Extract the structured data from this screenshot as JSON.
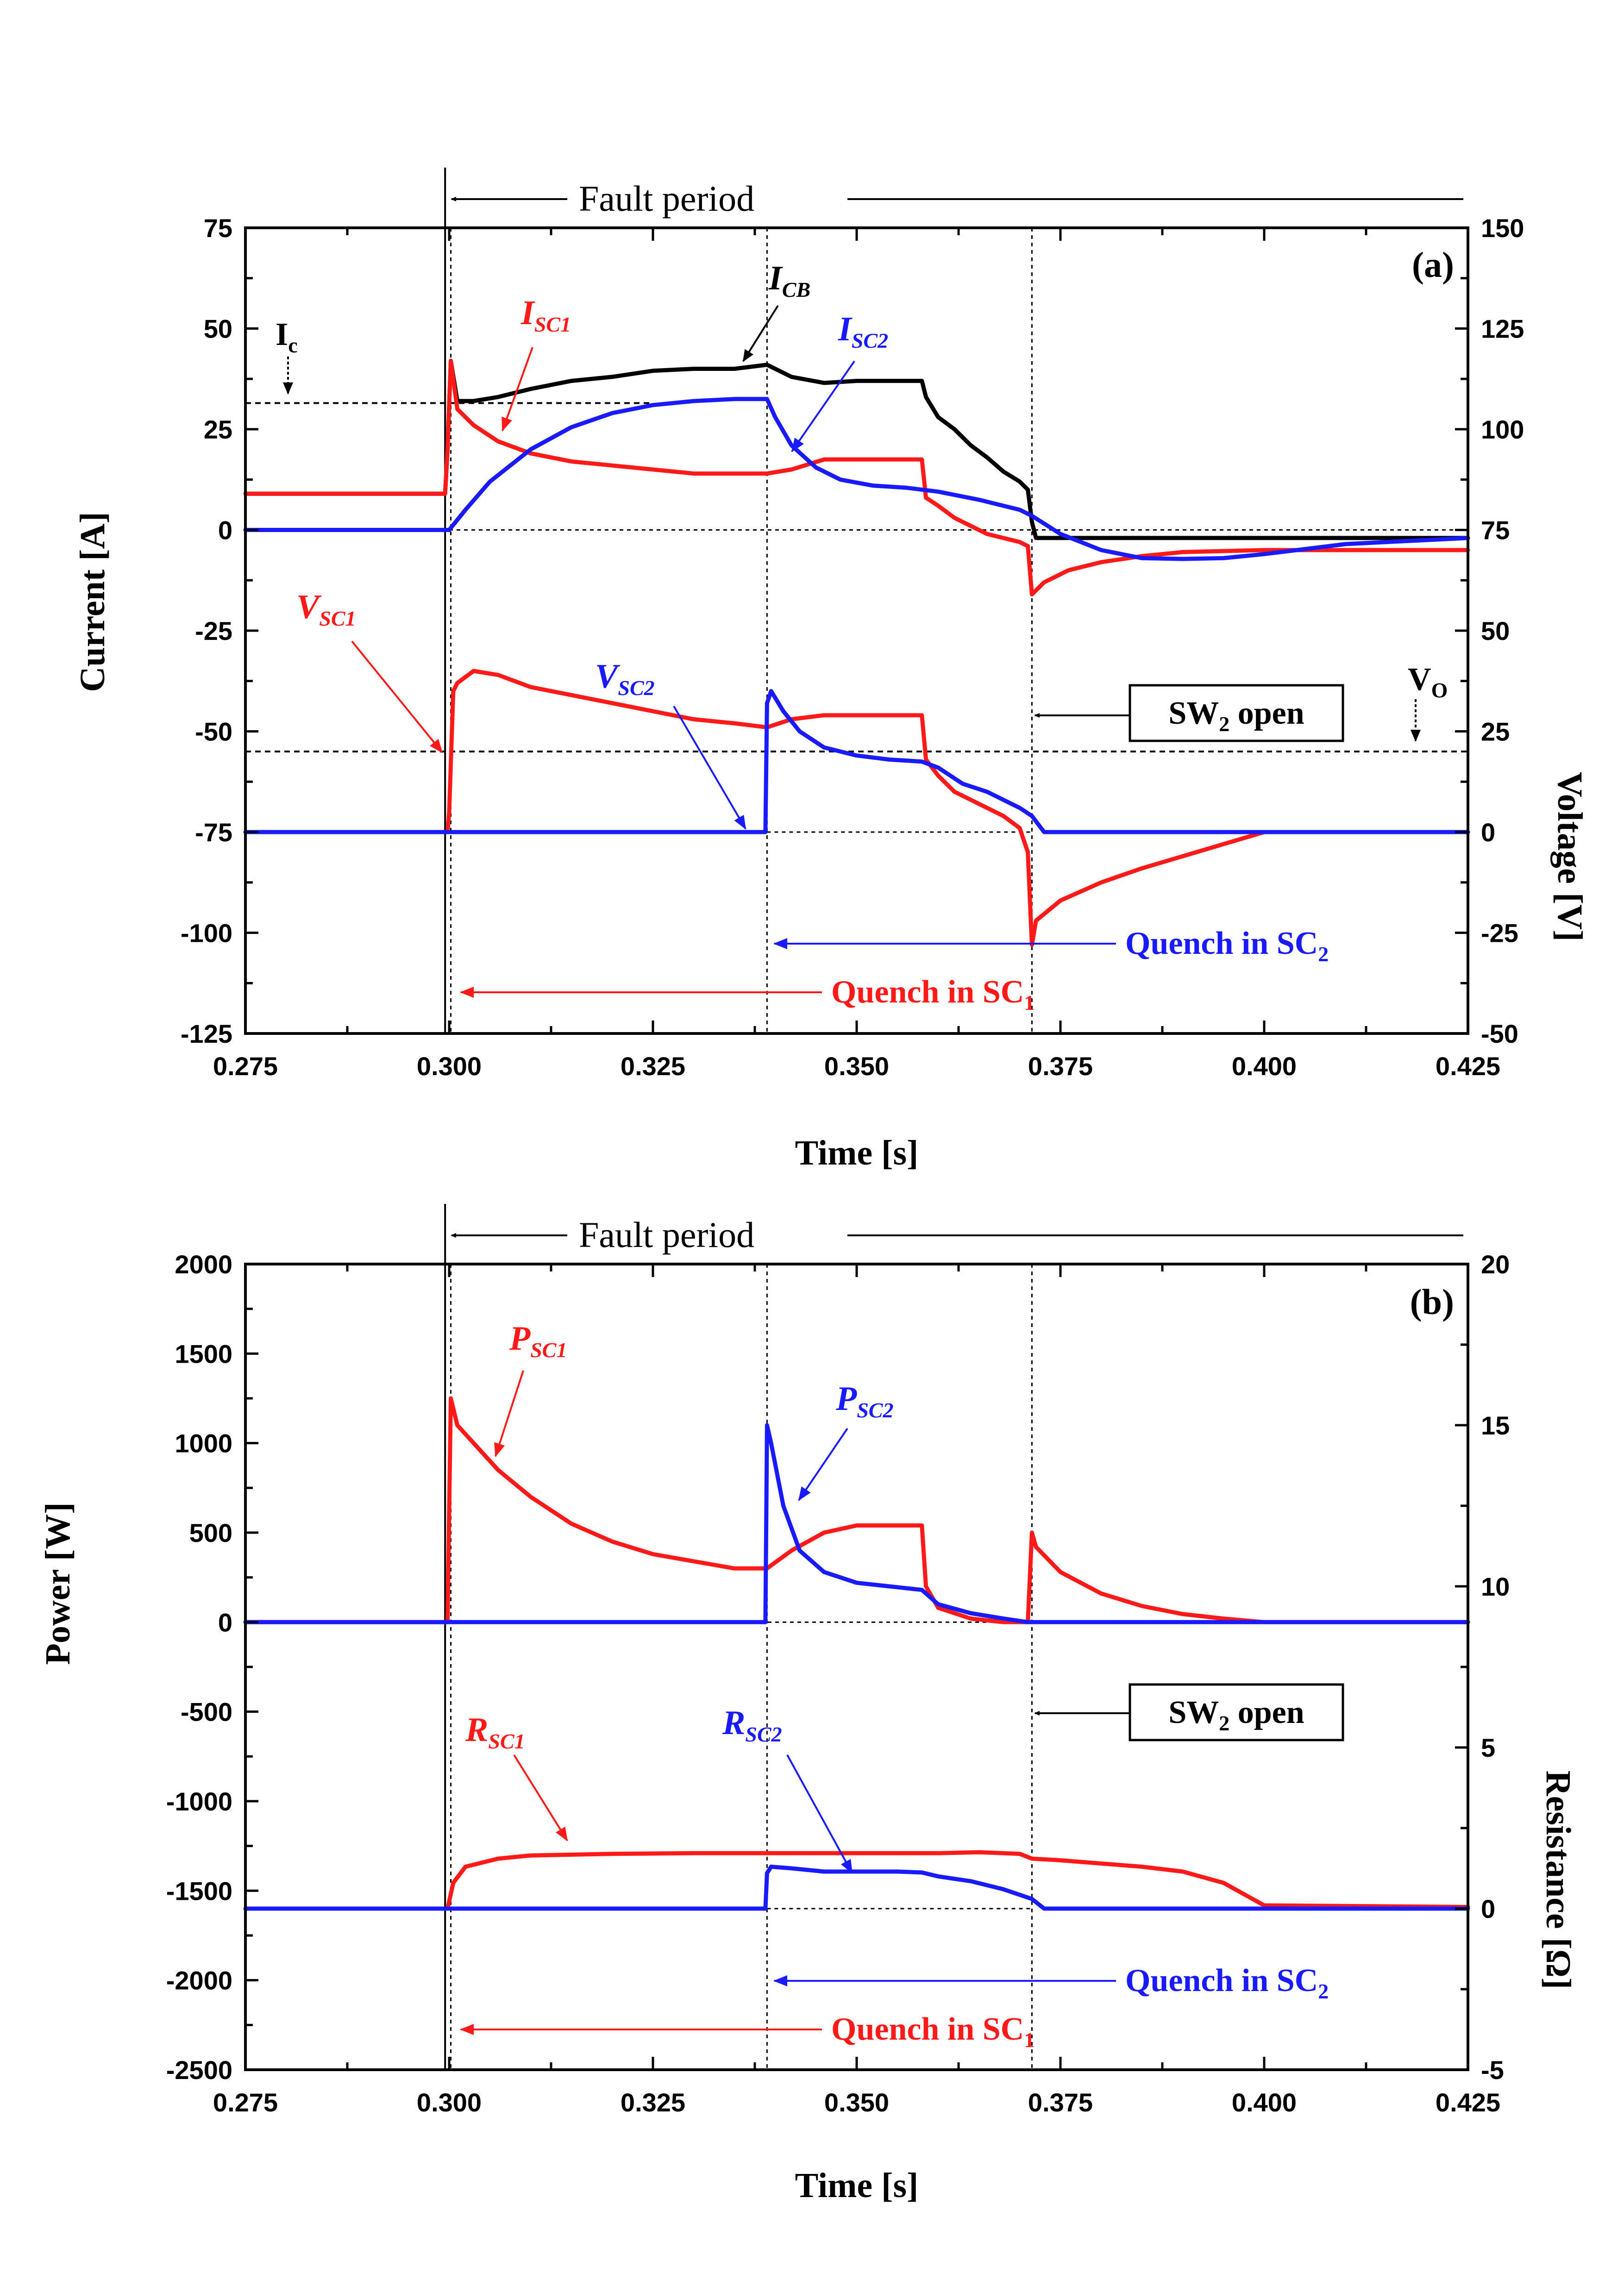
{
  "colors": {
    "red": "#ff1a1a",
    "blue": "#1a1aff",
    "black": "#000000"
  },
  "chart_data": [
    {
      "type": "line",
      "panel_label": "(a)",
      "xlabel": "Time [s]",
      "ylabel": "Current [A]",
      "ylabel_right": "Voltage [V]",
      "xlim": [
        0.275,
        0.425
      ],
      "ylim": [
        -125,
        75
      ],
      "ylim_right": [
        -50,
        150
      ],
      "x_ticks": [
        "0.275",
        "0.300",
        "0.325",
        "0.350",
        "0.375",
        "0.400",
        "0.425"
      ],
      "y_ticks": [
        "75",
        "50",
        "25",
        "0",
        "-25",
        "-50",
        "-75",
        "-100",
        "-125"
      ],
      "y_ticks_right": [
        "150",
        "125",
        "100",
        "75",
        "50",
        "25",
        "0",
        "-25",
        "-50"
      ],
      "annotations": {
        "fault_period": "Fault period",
        "ic_label": "I",
        "ic_sub": "c",
        "vo_label": "V",
        "vo_sub": "O",
        "sw2_open": "SW",
        "sw2_sub": "2",
        "sw2_rest": " open",
        "quench_sc2": "Quench in SC",
        "quench_sc2_sub": "2",
        "quench_sc1": "Quench in SC",
        "quench_sc1_sub": "1"
      },
      "reference_levels": {
        "Ic_A": 31.5,
        "Vo_V": 20
      },
      "event_times": {
        "fault_start": 0.2995,
        "quench_sc1": 0.3002,
        "quench_sc2": 0.339,
        "sw2_open": 0.3715
      },
      "series": [
        {
          "name": "I",
          "sub": "CB",
          "color": "black",
          "axis": "left",
          "x": [
            0.275,
            0.2995,
            0.2998,
            0.3002,
            0.301,
            0.303,
            0.306,
            0.31,
            0.315,
            0.32,
            0.325,
            0.33,
            0.335,
            0.339,
            0.342,
            0.346,
            0.35,
            0.355,
            0.358,
            0.3585,
            0.36,
            0.362,
            0.364,
            0.366,
            0.368,
            0.37,
            0.371,
            0.3715,
            0.372,
            0.38,
            0.39,
            0.4,
            0.41,
            0.425
          ],
          "y": [
            9,
            9,
            20,
            42,
            32,
            32,
            33,
            35,
            37,
            38,
            39.5,
            40,
            40,
            41,
            38,
            36.5,
            37,
            37,
            37,
            33,
            28,
            25,
            21,
            18,
            14.5,
            12,
            10,
            2,
            -2,
            -2,
            -2,
            -2,
            -2,
            -2
          ]
        },
        {
          "name": "I",
          "sub": "SC1",
          "color": "red",
          "axis": "left",
          "x": [
            0.275,
            0.2995,
            0.2998,
            0.3002,
            0.301,
            0.303,
            0.306,
            0.31,
            0.315,
            0.32,
            0.325,
            0.33,
            0.335,
            0.339,
            0.342,
            0.346,
            0.35,
            0.355,
            0.358,
            0.3585,
            0.36,
            0.362,
            0.364,
            0.366,
            0.368,
            0.37,
            0.371,
            0.3715,
            0.373,
            0.376,
            0.38,
            0.385,
            0.39,
            0.4,
            0.41,
            0.425
          ],
          "y": [
            9,
            9,
            20,
            42,
            30,
            26,
            22,
            19,
            17,
            16,
            15,
            14,
            14,
            14,
            15,
            17.5,
            17.5,
            17.5,
            17.5,
            8,
            6,
            3,
            1,
            -1,
            -2,
            -3,
            -4,
            -16,
            -13,
            -10,
            -8,
            -6.5,
            -5.5,
            -5,
            -5,
            -5
          ]
        },
        {
          "name": "I",
          "sub": "SC2",
          "color": "blue",
          "axis": "left",
          "x": [
            0.275,
            0.3,
            0.302,
            0.305,
            0.31,
            0.315,
            0.32,
            0.325,
            0.33,
            0.335,
            0.339,
            0.34,
            0.342,
            0.345,
            0.348,
            0.352,
            0.356,
            0.36,
            0.365,
            0.37,
            0.3715,
            0.375,
            0.38,
            0.385,
            0.39,
            0.395,
            0.4,
            0.41,
            0.425
          ],
          "y": [
            0,
            0,
            5,
            12,
            20,
            25.5,
            29,
            31,
            32,
            32.5,
            32.5,
            28,
            21,
            15.5,
            12.5,
            11,
            10.5,
            9.5,
            7.5,
            5,
            3.5,
            -1,
            -5,
            -7,
            -7.2,
            -7,
            -6,
            -3.5,
            -2
          ]
        },
        {
          "name": "V",
          "sub": "SC1",
          "color": "red",
          "axis": "right",
          "x": [
            0.275,
            0.2998,
            0.3,
            0.3005,
            0.301,
            0.303,
            0.306,
            0.31,
            0.315,
            0.32,
            0.325,
            0.33,
            0.335,
            0.339,
            0.342,
            0.346,
            0.35,
            0.355,
            0.358,
            0.3585,
            0.36,
            0.362,
            0.364,
            0.366,
            0.368,
            0.37,
            0.371,
            0.3715,
            0.372,
            0.375,
            0.38,
            0.385,
            0.39,
            0.395,
            0.4,
            0.41,
            0.425
          ],
          "y": [
            0,
            0,
            5,
            35,
            37,
            40,
            39,
            36,
            34,
            32,
            30,
            28,
            27,
            26,
            28,
            29,
            29,
            29,
            29,
            18,
            14,
            10,
            8,
            6,
            4,
            1,
            -5,
            -28,
            -22,
            -17,
            -12.5,
            -9,
            -6,
            -3,
            0,
            0,
            0
          ]
        },
        {
          "name": "V",
          "sub": "SC2",
          "color": "blue",
          "axis": "right",
          "x": [
            0.275,
            0.3388,
            0.339,
            0.3395,
            0.341,
            0.343,
            0.346,
            0.35,
            0.354,
            0.358,
            0.36,
            0.363,
            0.366,
            0.37,
            0.3715,
            0.373,
            0.38,
            0.4,
            0.425
          ],
          "y": [
            0,
            0,
            32,
            35,
            30,
            25,
            21,
            19,
            18,
            17.5,
            16,
            12,
            10,
            6,
            4,
            0,
            0,
            0,
            0
          ]
        }
      ]
    },
    {
      "type": "line",
      "panel_label": "(b)",
      "xlabel": "Time [s]",
      "ylabel": "Power [W]",
      "ylabel_right": "Resistance [Ω]",
      "xlim": [
        0.275,
        0.425
      ],
      "ylim": [
        -2500,
        2000
      ],
      "ylim_right": [
        -5,
        20
      ],
      "x_ticks": [
        "0.275",
        "0.300",
        "0.325",
        "0.350",
        "0.375",
        "0.400",
        "0.425"
      ],
      "y_ticks": [
        "2000",
        "1500",
        "1000",
        "500",
        "0",
        "-500",
        "-1000",
        "-1500",
        "-2000",
        "-2500"
      ],
      "y_ticks_right": [
        "20",
        "15",
        "10",
        "5",
        "0",
        "-5"
      ],
      "annotations": {
        "fault_period": "Fault period",
        "sw2_open": "SW",
        "sw2_sub": "2",
        "sw2_rest": " open",
        "quench_sc2": "Quench in SC",
        "quench_sc2_sub": "2",
        "quench_sc1": "Quench in SC",
        "quench_sc1_sub": "1"
      },
      "event_times": {
        "fault_start": 0.2995,
        "quench_sc1": 0.3002,
        "quench_sc2": 0.339,
        "sw2_open": 0.3715
      },
      "series": [
        {
          "name": "P",
          "sub": "SC1",
          "color": "red",
          "axis": "left",
          "x": [
            0.275,
            0.2998,
            0.3002,
            0.301,
            0.303,
            0.306,
            0.31,
            0.315,
            0.32,
            0.325,
            0.33,
            0.335,
            0.339,
            0.342,
            0.346,
            0.35,
            0.355,
            0.358,
            0.3585,
            0.36,
            0.364,
            0.368,
            0.371,
            0.3715,
            0.372,
            0.375,
            0.38,
            0.385,
            0.39,
            0.395,
            0.4,
            0.425
          ],
          "y": [
            0,
            0,
            1250,
            1100,
            1000,
            850,
            700,
            550,
            450,
            380,
            340,
            300,
            300,
            400,
            500,
            540,
            540,
            540,
            200,
            80,
            20,
            0,
            0,
            500,
            420,
            280,
            160,
            90,
            45,
            20,
            0,
            0
          ]
        },
        {
          "name": "P",
          "sub": "SC2",
          "color": "blue",
          "axis": "left",
          "x": [
            0.275,
            0.3388,
            0.339,
            0.3395,
            0.341,
            0.343,
            0.346,
            0.35,
            0.354,
            0.358,
            0.36,
            0.364,
            0.368,
            0.371,
            0.3715,
            0.425
          ],
          "y": [
            0,
            0,
            1100,
            1000,
            650,
            400,
            280,
            220,
            200,
            180,
            100,
            50,
            20,
            0,
            0,
            0
          ]
        },
        {
          "name": "R",
          "sub": "SC1",
          "color": "red",
          "axis": "right",
          "x": [
            0.275,
            0.2998,
            0.3005,
            0.302,
            0.306,
            0.31,
            0.32,
            0.33,
            0.34,
            0.35,
            0.36,
            0.365,
            0.37,
            0.3715,
            0.375,
            0.38,
            0.385,
            0.39,
            0.395,
            0.4,
            0.425
          ],
          "y": [
            0,
            0,
            0.8,
            1.3,
            1.55,
            1.65,
            1.7,
            1.72,
            1.72,
            1.72,
            1.72,
            1.75,
            1.7,
            1.55,
            1.5,
            1.4,
            1.3,
            1.15,
            0.8,
            0.1,
            0.05
          ]
        },
        {
          "name": "R",
          "sub": "SC2",
          "color": "blue",
          "axis": "right",
          "x": [
            0.275,
            0.3388,
            0.339,
            0.3395,
            0.342,
            0.346,
            0.35,
            0.355,
            0.358,
            0.36,
            0.364,
            0.368,
            0.3715,
            0.373,
            0.38,
            0.425
          ],
          "y": [
            0,
            0,
            1.1,
            1.3,
            1.25,
            1.15,
            1.15,
            1.15,
            1.12,
            1.0,
            0.85,
            0.6,
            0.3,
            0,
            0,
            0
          ]
        }
      ]
    }
  ]
}
